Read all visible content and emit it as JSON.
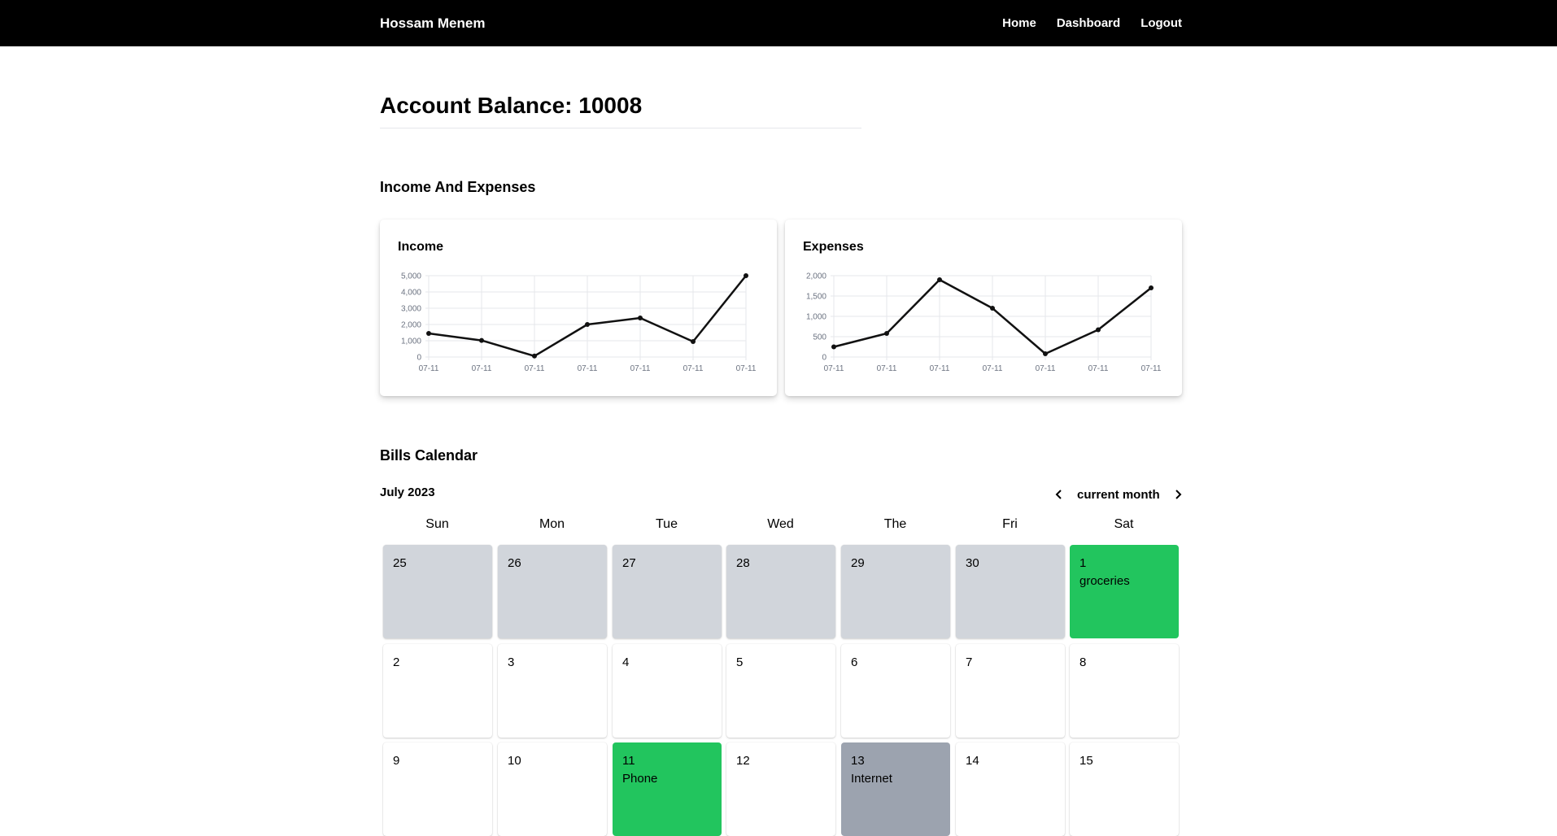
{
  "navbar": {
    "brand": "Hossam Menem",
    "links": [
      "Home",
      "Dashboard",
      "Logout"
    ]
  },
  "balance": {
    "text": "Account Balance: 10008"
  },
  "sections": {
    "income_expenses": "Income And Expenses",
    "calendar": "Bills Calendar"
  },
  "chart_data": [
    {
      "type": "line",
      "title": "Income",
      "x": [
        "07-11",
        "07-11",
        "07-11",
        "07-11",
        "07-11",
        "07-11",
        "07-11"
      ],
      "values": [
        1450,
        1020,
        60,
        2000,
        2400,
        950,
        5000
      ],
      "yticks": [
        "5,000",
        "4,000",
        "3,000",
        "2,000",
        "1,000",
        "0"
      ],
      "ylim": [
        0,
        5000
      ],
      "grid": true,
      "color": "#111111"
    },
    {
      "type": "line",
      "title": "Expenses",
      "x": [
        "07-11",
        "07-11",
        "07-11",
        "07-11",
        "07-11",
        "07-11",
        "07-11"
      ],
      "values": [
        250,
        580,
        1900,
        1200,
        80,
        670,
        1700
      ],
      "yticks": [
        "2,000",
        "1,500",
        "1,000",
        "500",
        "0"
      ],
      "ylim": [
        0,
        2000
      ],
      "grid": true,
      "color": "#111111"
    }
  ],
  "calendar": {
    "month_label": "July 2023",
    "nav_label": "current month",
    "prev_icon": "chevron-left-icon",
    "next_icon": "chevron-right-icon",
    "weekdays": [
      "Sun",
      "Mon",
      "Tue",
      "Wed",
      "The",
      "Fri",
      "Sat"
    ],
    "colors": {
      "outside": "#d1d5db",
      "paid": "#22c55e",
      "due": "#9ca3af"
    },
    "weeks": [
      [
        {
          "day": "25",
          "state": "outside",
          "event": ""
        },
        {
          "day": "26",
          "state": "outside",
          "event": ""
        },
        {
          "day": "27",
          "state": "outside",
          "event": ""
        },
        {
          "day": "28",
          "state": "outside",
          "event": ""
        },
        {
          "day": "29",
          "state": "outside",
          "event": ""
        },
        {
          "day": "30",
          "state": "outside",
          "event": ""
        },
        {
          "day": "1",
          "state": "paid",
          "event": "groceries"
        }
      ],
      [
        {
          "day": "2",
          "state": "normal",
          "event": ""
        },
        {
          "day": "3",
          "state": "normal",
          "event": ""
        },
        {
          "day": "4",
          "state": "normal",
          "event": ""
        },
        {
          "day": "5",
          "state": "normal",
          "event": ""
        },
        {
          "day": "6",
          "state": "normal",
          "event": ""
        },
        {
          "day": "7",
          "state": "normal",
          "event": ""
        },
        {
          "day": "8",
          "state": "normal",
          "event": ""
        }
      ],
      [
        {
          "day": "9",
          "state": "normal",
          "event": ""
        },
        {
          "day": "10",
          "state": "normal",
          "event": ""
        },
        {
          "day": "11",
          "state": "paid",
          "event": "Phone"
        },
        {
          "day": "12",
          "state": "normal",
          "event": ""
        },
        {
          "day": "13",
          "state": "due",
          "event": "Internet"
        },
        {
          "day": "14",
          "state": "normal",
          "event": ""
        },
        {
          "day": "15",
          "state": "normal",
          "event": ""
        }
      ]
    ]
  }
}
